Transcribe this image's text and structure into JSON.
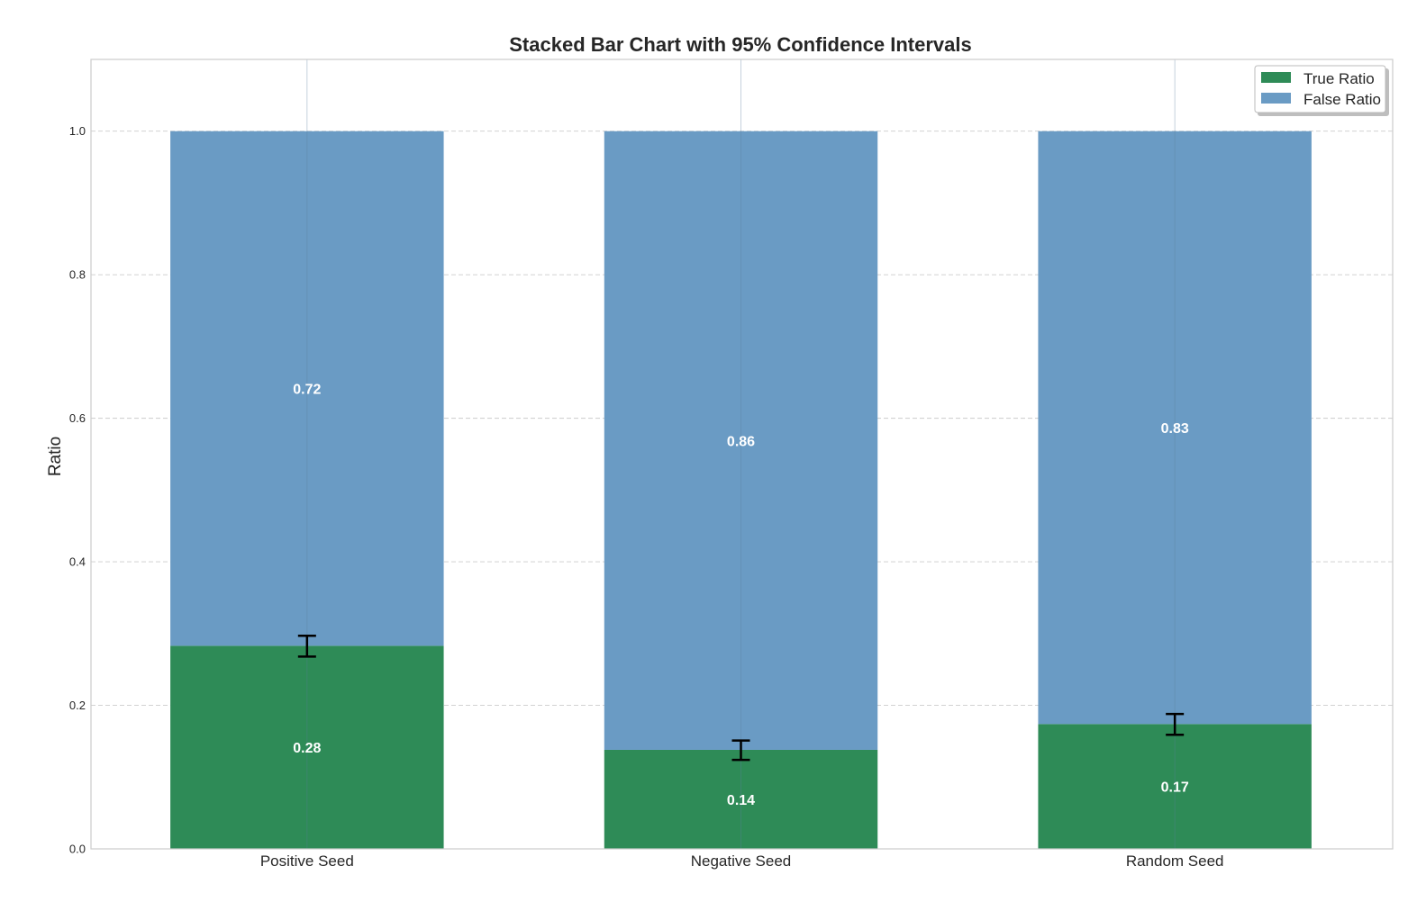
{
  "chart_data": {
    "type": "bar",
    "stacked": true,
    "title": "Stacked Bar Chart with 95% Confidence Intervals",
    "xlabel": "",
    "ylabel": "Ratio",
    "ylim": [
      0,
      1.1
    ],
    "yticks": [
      "0.0",
      "0.2",
      "0.4",
      "0.6",
      "0.8",
      "1.0"
    ],
    "categories": [
      "Positive Seed",
      "Negative Seed",
      "Random Seed"
    ],
    "series": [
      {
        "name": "True Ratio",
        "color": "#2e8b57",
        "values": [
          0.283,
          0.138,
          0.174
        ],
        "labels": [
          "0.28",
          "0.14",
          "0.17"
        ],
        "ci_lower": [
          0.268,
          0.124,
          0.159
        ],
        "ci_upper": [
          0.297,
          0.151,
          0.188
        ]
      },
      {
        "name": "False Ratio",
        "color": "#6a9bc4",
        "values": [
          0.717,
          0.862,
          0.826
        ],
        "labels": [
          "0.72",
          "0.86",
          "0.83"
        ]
      }
    ],
    "grid": true,
    "legend_position": "top-right"
  }
}
